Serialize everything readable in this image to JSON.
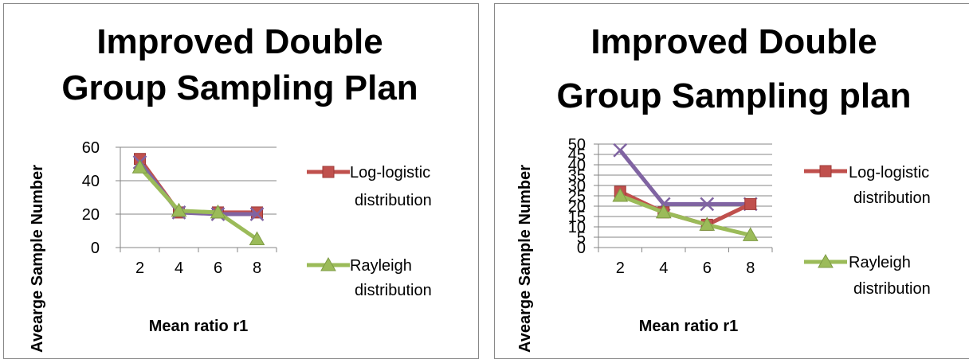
{
  "chart_data": [
    {
      "type": "line",
      "title_lines": [
        "Improved Double",
        "Group Sampling Plan"
      ],
      "xlabel": "Mean ratio r1",
      "ylabel": "Avearge Sample Number",
      "categories": [
        "2",
        "4",
        "6",
        "8"
      ],
      "yticks": [
        0,
        20,
        40,
        60
      ],
      "ylim": [
        0,
        60
      ],
      "grid": true,
      "legend_position": "right",
      "series": [
        {
          "name": "Log-logistic distribution",
          "name_lines": [
            "Log-logistic",
            "distribution"
          ],
          "color": "#c0504d",
          "marker": "square",
          "legend": true,
          "values": [
            53,
            21,
            21,
            21
          ]
        },
        {
          "name": "",
          "color": "#8064a2",
          "marker": "x",
          "legend": false,
          "values": [
            51,
            21,
            20,
            20
          ]
        },
        {
          "name": "Rayleigh distribution",
          "name_lines": [
            "Rayleigh",
            "distribution"
          ],
          "color": "#9bbb59",
          "marker": "triangle",
          "legend": true,
          "values": [
            48,
            22,
            21,
            5
          ]
        }
      ]
    },
    {
      "type": "line",
      "title_lines": [
        "Improved Double",
        "Group Sampling plan"
      ],
      "xlabel": "Mean ratio r1",
      "ylabel": "Avearge Sample Number",
      "categories": [
        "2",
        "4",
        "6",
        "8"
      ],
      "yticks": [
        0,
        5,
        10,
        15,
        20,
        25,
        30,
        35,
        40,
        45,
        50
      ],
      "ylim": [
        0,
        50
      ],
      "grid": true,
      "legend_position": "right",
      "series": [
        {
          "name": "",
          "color": "#8064a2",
          "marker": "x",
          "legend": false,
          "values": [
            47,
            21,
            21,
            21
          ]
        },
        {
          "name": "Log-logistic distribution",
          "name_lines": [
            "Log-logistic",
            "distribution"
          ],
          "color": "#c0504d",
          "marker": "square",
          "legend": true,
          "values": [
            27,
            17,
            11,
            21
          ]
        },
        {
          "name": "Rayleigh distribution",
          "name_lines": [
            "Rayleigh",
            "distribution"
          ],
          "color": "#9bbb59",
          "marker": "triangle",
          "legend": true,
          "values": [
            25,
            17,
            11,
            6
          ]
        }
      ]
    }
  ]
}
